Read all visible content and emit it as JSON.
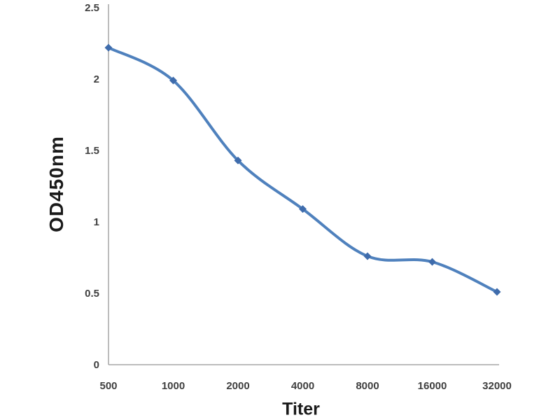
{
  "chart_data": {
    "type": "line",
    "title": "",
    "xlabel": "Titer",
    "ylabel": "OD450nm",
    "categories": [
      "500",
      "1000",
      "2000",
      "4000",
      "8000",
      "16000",
      "32000"
    ],
    "series": [
      {
        "name": "OD450nm",
        "values": [
          2.22,
          1.99,
          1.43,
          1.09,
          0.76,
          0.72,
          0.51
        ]
      }
    ],
    "ylim": [
      0,
      2.5
    ],
    "yticks": [
      "0",
      "0.5",
      "1",
      "1.5",
      "2",
      "2.5"
    ],
    "ytick_values": [
      0,
      0.5,
      1,
      1.5,
      2,
      2.5
    ],
    "grid": false,
    "legend_position": "none",
    "line_style": "smooth",
    "marker": "diamond",
    "colors": {
      "line": "#4f81bd",
      "marker": "#3f6cac",
      "axis": "#a6a6a6",
      "tick_label": "#404040",
      "axis_title": "#1a1a1a",
      "background": "#ffffff"
    }
  }
}
